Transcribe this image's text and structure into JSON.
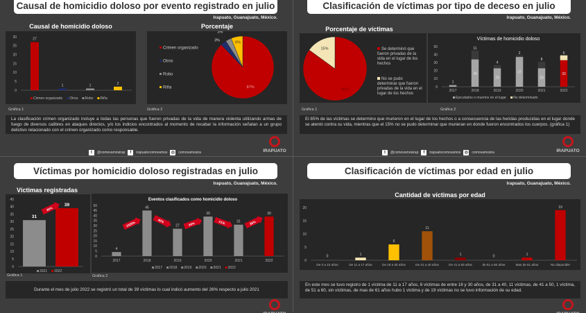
{
  "location": "Irapuato, Guanajuato, México.",
  "footer": {
    "twitter": "@comovamosirap",
    "facebook": "irapuatocomovamos",
    "instagram": "comovamosira",
    "logo_text": "IRAPUATO"
  },
  "q1": {
    "title": "Causal de homicidio doloso por evento registrado en julio",
    "chart1_title": "Causal de homicidio doloso",
    "chart2_title": "Porcentaje",
    "caption1": "Gráfica 1",
    "caption2": "Gráfica 2",
    "note": "La clasificación crimen organizado incluye a todas las personas que fueron privadas de la vida de manera violenta utilizando armas de fuego de diversos calibres en ataques directos, y/o los indicios encontrados al momento de recabar la información señalan a un grupo delictivo relacionado con el crimen organizado como responsable."
  },
  "q2": {
    "title": "Clasificación de víctimas por tipo de deceso en julio",
    "chart1_title": "Porcentaje de víctimas",
    "caption1": "Gráfica 1",
    "caption2": "Gráfica 2",
    "note": "El 85% de las víctimas se determino que murieron en el lugar de los hechos o a consecuencia de las heridas producidas en el lugar donde se atentó contra su vida, mientras que el 15% no se pudo determinar que murieran en donde fueron encontrados los cuerpos. (gráfica 1)"
  },
  "q3": {
    "title": "Víctimas por homicidio doloso registradas en julio",
    "chart1_title": "Víctimas registradas",
    "caption1": "Gráfica 1",
    "caption2": "Gráfica 2",
    "note": "Durante el mes de julio 2022 se registró un total de 39 víctimas lo cual indicó aumento del 26% respecto a julio 2021"
  },
  "q4": {
    "title": "Clasificación de víctimas por edad en julio",
    "chart1_title": "Cantidad de víctimas por edad",
    "note": "En este mes se tuvo registro de 1 víctima de 11 a 17 años, 6 víctimas de entre 18 y 30 años, de 31 a 40, 11 víctimas, de 41 a 50, 1 víctima, de 51 a 60, sin víctimas, de mas de 61 años hubo 1 víctima y de 19 víctimas no se tuvo información de su edad."
  },
  "chart_data": [
    {
      "type": "bar",
      "title": "Causal de homicidio doloso",
      "categories": [
        "Crimen organizado",
        "Otros",
        "Robo",
        "Riña"
      ],
      "values": [
        27,
        1,
        1,
        2
      ],
      "colors": [
        "#c00000",
        "#1f2d6b",
        "#8c8c8c",
        "#ffc000"
      ],
      "ylim": [
        0,
        30
      ],
      "yticks": [
        0,
        5,
        10,
        15,
        20,
        25,
        30
      ],
      "legend": "bottom"
    },
    {
      "type": "pie",
      "title": "Porcentaje",
      "labels": [
        "Crimen organizado",
        "Otros",
        "Robo",
        "Riña"
      ],
      "values": [
        87,
        3,
        3,
        6
      ],
      "value_labels": [
        "87%",
        "3%",
        "3%",
        "6%"
      ],
      "colors": [
        "#c00000",
        "#1f2d6b",
        "#8c8c8c",
        "#ffc000"
      ],
      "legend": "left"
    },
    {
      "type": "pie",
      "title": "Porcentaje de víctimas",
      "labels": [
        "Se determinó que fueron privadas de la vida en el lugar de los hechos",
        "No se pudo determinar que fueron privadas de la vida en el lugar de los hechos"
      ],
      "values": [
        85,
        15
      ],
      "value_labels": [
        "85%",
        "15%"
      ],
      "colors": [
        "#c00000",
        "#f3e5b5"
      ],
      "legend": "right"
    },
    {
      "type": "bar",
      "stacked": true,
      "title": "Víctimas de homicidio doloso",
      "categories": [
        "2017",
        "2018",
        "2019",
        "2020",
        "2021",
        "2022"
      ],
      "series": [
        {
          "name": "Ejecutados o muertos en el lugar",
          "values": [
            2,
            34,
            23,
            37,
            23,
            33
          ]
        },
        {
          "name": "No determinado",
          "values": [
            1,
            11,
            4,
            2,
            8,
            6
          ]
        }
      ],
      "ylim": [
        0,
        50
      ],
      "yticks": [
        0,
        10,
        20,
        30,
        40,
        50
      ],
      "legend": "bottom"
    },
    {
      "type": "bar",
      "title": "Víctimas registradas",
      "categories": [
        "2021",
        "2022"
      ],
      "values": [
        31,
        39
      ],
      "colors": [
        "#8c8c8c",
        "#c00000"
      ],
      "ylim": [
        0,
        45
      ],
      "yticks": [
        0,
        5,
        10,
        15,
        20,
        25,
        30,
        35,
        40,
        45
      ],
      "annotations": [
        "26%"
      ],
      "legend": "bottom"
    },
    {
      "type": "bar",
      "title": "Eventos clasificados como homicidio doloso",
      "categories": [
        "2017",
        "2018",
        "2019",
        "2020",
        "2021",
        "2022"
      ],
      "values": [
        4,
        45,
        27,
        39,
        31,
        39
      ],
      "colors": [
        "#8c8c8c",
        "#8c8c8c",
        "#8c8c8c",
        "#8c8c8c",
        "#8c8c8c",
        "#c00000"
      ],
      "ylim": [
        0,
        50
      ],
      "yticks": [
        0,
        5,
        10,
        15,
        20,
        25,
        30,
        35,
        40,
        45,
        50
      ],
      "annotations": [
        "1025%",
        "40%",
        "44%",
        "21%",
        "26%"
      ],
      "legend": "bottom"
    },
    {
      "type": "bar",
      "title": "Cantidad de víctimas por edad",
      "categories": [
        "De 0 a 10 años",
        "De 11 a 17 años",
        "De 18 a 30 años",
        "De 31 a 40 años",
        "De 41 a 50 años",
        "de 51 a 60 años",
        "Mas de 61 años",
        "No disponible"
      ],
      "values": [
        0,
        1,
        6,
        11,
        1,
        0,
        1,
        19
      ],
      "colors": [
        "#f3e5b5",
        "#f3e5b5",
        "#ffc000",
        "#a0520a",
        "#8b0000",
        "#8b0000",
        "#c00000",
        "#c00000"
      ],
      "ylim": [
        0,
        20
      ],
      "yticks": [
        0,
        5,
        10,
        15,
        20
      ]
    }
  ]
}
